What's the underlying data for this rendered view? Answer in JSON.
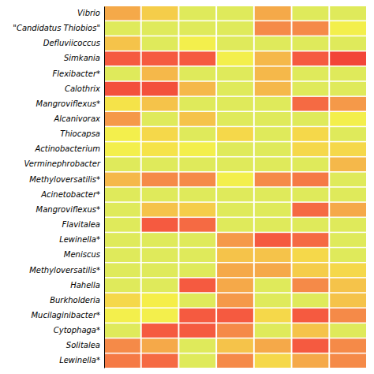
{
  "chart_data": {
    "type": "heatmap",
    "categories": [
      "Vibrio",
      "\"Candidatus Thiobios\"",
      "Defluviicoccus",
      "Simkania",
      "Flexibacter*",
      "Calothrix",
      "Mangroviflexus*",
      "Alcanivorax",
      "Thiocapsa",
      "Actinobacterium",
      "Verminephrobacter",
      "Methyloversatilis*",
      "Acinetobacter*",
      "Mangroviflexus*",
      "Flavitalea",
      "Lewinella*",
      "Meniscus",
      "Methyloversatilis*",
      "Hahella",
      "Burkholderia",
      "Mucilaginibacter*",
      "Cytophaga*",
      "Solitalea",
      "Lewinella*"
    ],
    "values": [
      [
        0.55,
        0.4,
        0.1,
        0.1,
        0.55,
        0.1,
        0.1
      ],
      [
        0.1,
        0.1,
        0.1,
        0.1,
        0.65,
        0.65,
        0.2
      ],
      [
        0.45,
        0.1,
        0.2,
        0.1,
        0.1,
        0.1,
        0.1
      ],
      [
        0.8,
        0.8,
        0.8,
        0.2,
        0.5,
        0.8,
        0.9
      ],
      [
        0.1,
        0.5,
        0.1,
        0.1,
        0.5,
        0.1,
        0.1
      ],
      [
        0.85,
        0.85,
        0.5,
        0.1,
        0.5,
        0.1,
        0.1
      ],
      [
        0.3,
        0.45,
        0.1,
        0.1,
        0.1,
        0.75,
        0.6
      ],
      [
        0.6,
        0.1,
        0.45,
        0.1,
        0.1,
        0.1,
        0.2
      ],
      [
        0.2,
        0.35,
        0.1,
        0.35,
        0.1,
        0.35,
        0.1
      ],
      [
        0.2,
        0.3,
        0.2,
        0.1,
        0.1,
        0.35,
        0.35
      ],
      [
        0.1,
        0.1,
        0.1,
        0.1,
        0.1,
        0.1,
        0.5
      ],
      [
        0.5,
        0.65,
        0.65,
        0.2,
        0.65,
        0.7,
        0.1
      ],
      [
        0.1,
        0.1,
        0.1,
        0.1,
        0.1,
        0.1,
        0.1
      ],
      [
        0.1,
        0.45,
        0.4,
        0.1,
        0.1,
        0.75,
        0.55
      ],
      [
        0.1,
        0.8,
        0.75,
        0.1,
        0.1,
        0.1,
        0.1
      ],
      [
        0.1,
        0.1,
        0.1,
        0.6,
        0.8,
        0.75,
        0.1
      ],
      [
        0.1,
        0.1,
        0.1,
        0.45,
        0.45,
        0.35,
        0.1
      ],
      [
        0.1,
        0.1,
        0.1,
        0.55,
        0.55,
        0.4,
        0.35
      ],
      [
        0.1,
        0.1,
        0.8,
        0.55,
        0.1,
        0.65,
        0.45
      ],
      [
        0.35,
        0.25,
        0.1,
        0.6,
        0.1,
        0.1,
        0.45
      ],
      [
        0.2,
        0.2,
        0.8,
        0.8,
        0.35,
        0.8,
        0.65
      ],
      [
        0.1,
        0.8,
        0.8,
        0.65,
        0.1,
        0.45,
        0.1
      ],
      [
        0.65,
        0.55,
        0.1,
        0.45,
        0.55,
        0.8,
        0.65
      ],
      [
        0.7,
        0.75,
        0.1,
        0.65,
        0.35,
        0.55,
        0.65
      ]
    ],
    "zlim": [
      0.0,
      1.0
    ],
    "colorscale": [
      [
        0.0,
        "#B8D878"
      ],
      [
        0.08,
        "#D8E860"
      ],
      [
        0.15,
        "#F0F050"
      ],
      [
        0.25,
        "#F5EE48"
      ],
      [
        0.35,
        "#F5D84A"
      ],
      [
        0.5,
        "#F5B84A"
      ],
      [
        0.65,
        "#F58A48"
      ],
      [
        0.8,
        "#F55A40"
      ],
      [
        1.0,
        "#EE3030"
      ]
    ],
    "tick_labels": "y"
  }
}
